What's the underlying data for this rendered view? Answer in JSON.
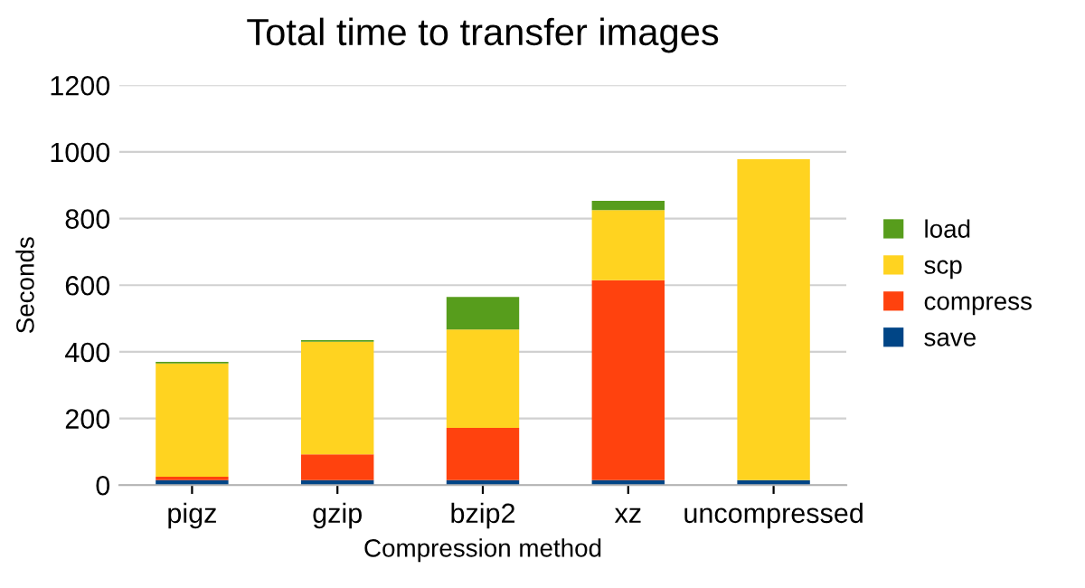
{
  "chart_data": {
    "type": "bar",
    "stacked": true,
    "title": "Total time to transfer images",
    "xlabel": "Compression method",
    "ylabel": "Seconds",
    "categories": [
      "pigz",
      "gzip",
      "bzip2",
      "xz",
      "uncompressed"
    ],
    "series": [
      {
        "name": "save",
        "color": "#004586",
        "values": [
          15,
          15,
          15,
          15,
          15
        ]
      },
      {
        "name": "compress",
        "color": "#ff420e",
        "values": [
          10,
          77,
          157,
          600,
          0
        ]
      },
      {
        "name": "scp",
        "color": "#ffd320",
        "values": [
          340,
          338,
          295,
          210,
          963
        ]
      },
      {
        "name": "load",
        "color": "#579d1c",
        "values": [
          5,
          5,
          98,
          28,
          0
        ]
      }
    ],
    "ylim": [
      0,
      1200
    ],
    "yticks": [
      0,
      200,
      400,
      600,
      800,
      1000,
      1200
    ],
    "grid": "y",
    "legend": "right"
  }
}
